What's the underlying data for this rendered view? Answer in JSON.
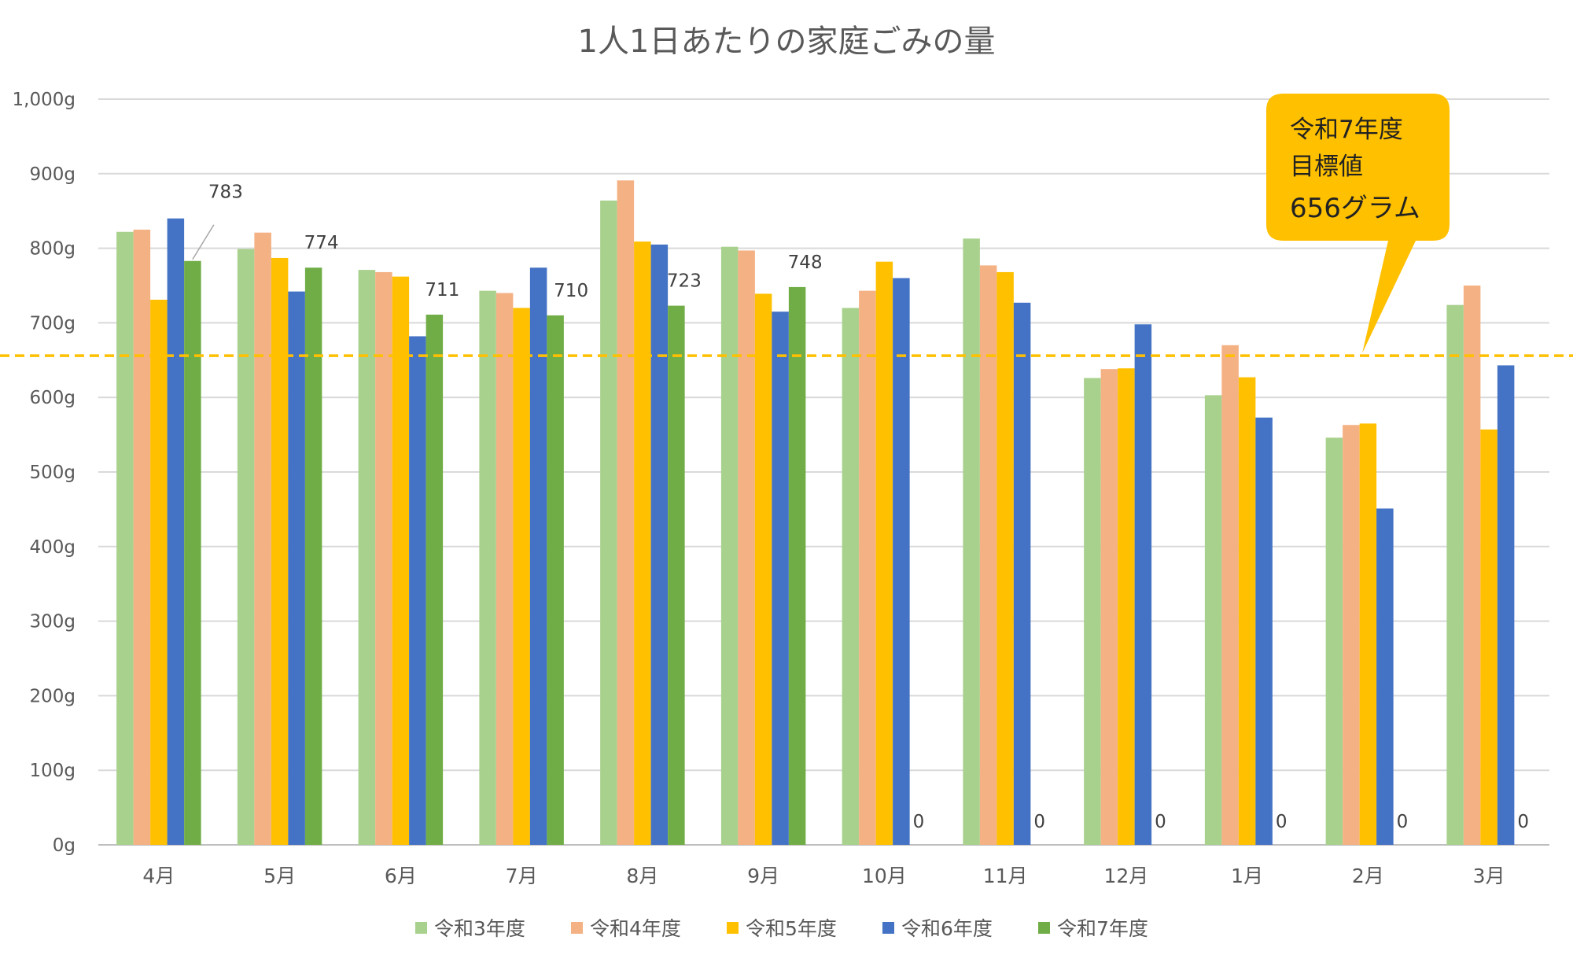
{
  "chart_data": {
    "type": "bar",
    "title": "1人1日あたりの家庭ごみの量",
    "xlabel": "",
    "ylabel": "",
    "ylim": [
      0,
      1000
    ],
    "yticks": [
      "0g",
      "100g",
      "200g",
      "300g",
      "400g",
      "500g",
      "600g",
      "700g",
      "800g",
      "900g",
      "1,000g"
    ],
    "grid": true,
    "legend_position": "bottom",
    "categories": [
      "4月",
      "5月",
      "6月",
      "7月",
      "8月",
      "9月",
      "10月",
      "11月",
      "12月",
      "1月",
      "2月",
      "3月"
    ],
    "series": [
      {
        "name": "令和3年度",
        "color": "#A9D18E",
        "values": [
          822,
          799,
          771,
          743,
          864,
          802,
          720,
          813,
          626,
          603,
          546,
          724
        ]
      },
      {
        "name": "令和4年度",
        "color": "#F4B183",
        "values": [
          825,
          821,
          768,
          740,
          891,
          797,
          743,
          777,
          638,
          670,
          563,
          750
        ]
      },
      {
        "name": "令和5年度",
        "color": "#FFC000",
        "values": [
          731,
          787,
          762,
          720,
          809,
          739,
          782,
          768,
          639,
          627,
          565,
          557
        ]
      },
      {
        "name": "令和6年度",
        "color": "#4472C4",
        "values": [
          840,
          742,
          682,
          774,
          805,
          715,
          760,
          727,
          698,
          573,
          451,
          643
        ]
      },
      {
        "name": "令和7年度",
        "color": "#70AD47",
        "values": [
          783,
          774,
          711,
          710,
          723,
          748,
          0,
          0,
          0,
          0,
          0,
          0
        ],
        "data_labels": [
          "783",
          "774",
          "711",
          "710",
          "723",
          "748",
          "0",
          "0",
          "0",
          "0",
          "0",
          "0"
        ]
      }
    ],
    "target_line": {
      "value": 656,
      "color": "#FFC000",
      "style": "dashed"
    },
    "callout": {
      "lines": [
        "令和7年度",
        "目標値",
        "656グラム"
      ],
      "color": "#FFC000"
    }
  }
}
